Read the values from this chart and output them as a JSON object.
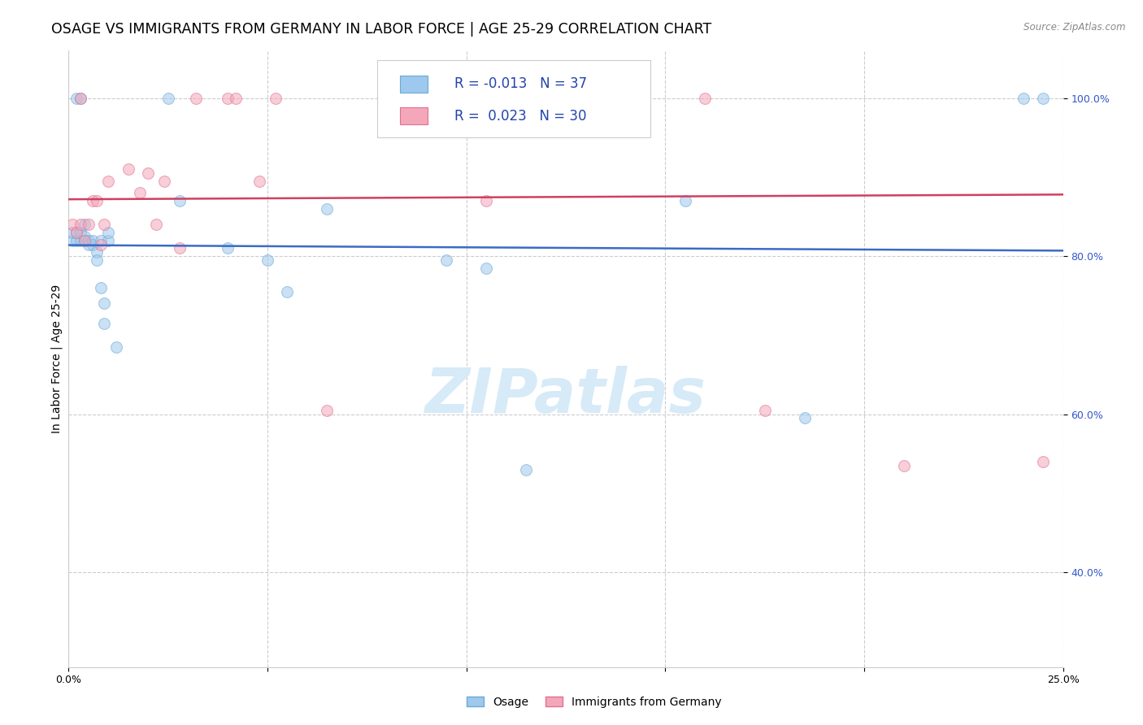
{
  "title": "OSAGE VS IMMIGRANTS FROM GERMANY IN LABOR FORCE | AGE 25-29 CORRELATION CHART",
  "source": "Source: ZipAtlas.com",
  "ylabel": "In Labor Force | Age 25-29",
  "xlim": [
    0.0,
    0.25
  ],
  "ylim": [
    0.28,
    1.06
  ],
  "x_ticks": [
    0.0,
    0.05,
    0.1,
    0.15,
    0.2,
    0.25
  ],
  "y_ticks": [
    0.4,
    0.6,
    0.8,
    1.0
  ],
  "y_tick_labels": [
    "40.0%",
    "60.0%",
    "80.0%",
    "100.0%"
  ],
  "legend_labels": [
    "Osage",
    "Immigrants from Germany"
  ],
  "osage_color": "#9EC8EE",
  "germany_color": "#F4A7B9",
  "osage_edge_color": "#6AAAD4",
  "germany_edge_color": "#E07090",
  "trend_osage_color": "#3B6BC4",
  "trend_germany_color": "#D04060",
  "watermark_color": "#D6EAF8",
  "watermark_text": "ZIPatlas",
  "background_color": "#FFFFFF",
  "grid_color": "#CCCCCC",
  "title_fontsize": 12.5,
  "axis_label_fontsize": 10,
  "tick_fontsize": 9,
  "watermark_fontsize": 55,
  "legend_fontsize": 12,
  "marker_size": 100,
  "marker_alpha": 0.55,
  "trend_linewidth": 1.8,
  "osage_trend_y0": 0.814,
  "osage_trend_y1": 0.807,
  "germany_trend_y0": 0.872,
  "germany_trend_y1": 0.878,
  "osage_x": [
    0.001,
    0.001,
    0.002,
    0.002,
    0.002,
    0.003,
    0.003,
    0.003,
    0.004,
    0.004,
    0.004,
    0.005,
    0.005,
    0.006,
    0.006,
    0.007,
    0.007,
    0.008,
    0.008,
    0.009,
    0.009,
    0.01,
    0.01,
    0.012,
    0.025,
    0.028,
    0.04,
    0.05,
    0.055,
    0.065,
    0.095,
    0.105,
    0.115,
    0.155,
    0.185,
    0.24,
    0.245
  ],
  "osage_y": [
    0.82,
    0.83,
    0.82,
    0.83,
    1.0,
    0.82,
    0.83,
    1.0,
    0.82,
    0.825,
    0.84,
    0.82,
    0.815,
    0.815,
    0.82,
    0.805,
    0.795,
    0.82,
    0.76,
    0.74,
    0.715,
    0.82,
    0.83,
    0.685,
    1.0,
    0.87,
    0.81,
    0.795,
    0.755,
    0.86,
    0.795,
    0.785,
    0.53,
    0.87,
    0.595,
    1.0,
    1.0
  ],
  "germany_x": [
    0.001,
    0.002,
    0.003,
    0.003,
    0.004,
    0.005,
    0.006,
    0.007,
    0.008,
    0.009,
    0.01,
    0.015,
    0.018,
    0.02,
    0.022,
    0.024,
    0.028,
    0.032,
    0.04,
    0.042,
    0.048,
    0.052,
    0.065,
    0.105,
    0.11,
    0.12,
    0.16,
    0.175,
    0.21,
    0.245
  ],
  "germany_y": [
    0.84,
    0.83,
    0.84,
    1.0,
    0.82,
    0.84,
    0.87,
    0.87,
    0.815,
    0.84,
    0.895,
    0.91,
    0.88,
    0.905,
    0.84,
    0.895,
    0.81,
    1.0,
    1.0,
    1.0,
    0.895,
    1.0,
    0.605,
    0.87,
    1.0,
    1.0,
    1.0,
    0.605,
    0.535,
    0.54
  ]
}
